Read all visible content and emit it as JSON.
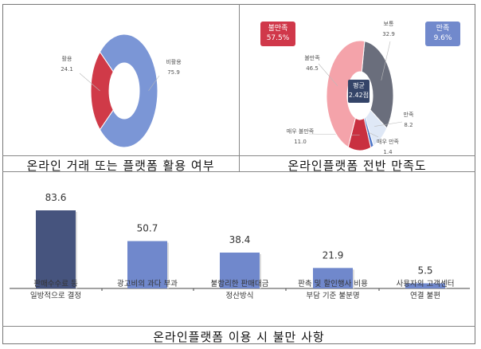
{
  "chart_data": [
    {
      "type": "pie",
      "title": "온라인 거래 또는 플랫폼 활용 여부",
      "slices": [
        {
          "label": "비활용",
          "value": 75.9,
          "color": "#7b96d6"
        },
        {
          "label": "활용",
          "value": 24.1,
          "color": "#d03a48"
        }
      ]
    },
    {
      "type": "pie",
      "title": "온라인플랫폼 전반 만족도",
      "slices": [
        {
          "label": "보통",
          "value": 32.9,
          "color": "#6a6e7c"
        },
        {
          "label": "만족",
          "value": 8.2,
          "color": "#dfe8f6"
        },
        {
          "label": "매우 만족",
          "value": 1.4,
          "color": "#4a74c8"
        },
        {
          "label": "매우 불만족",
          "value": 11.0,
          "color": "#c93040"
        },
        {
          "label": "불만족",
          "value": 46.5,
          "color": "#f4a3aa"
        }
      ],
      "badges": {
        "dissatisfied": {
          "label": "불만족",
          "value": "57.5%",
          "color": "#d0384a"
        },
        "satisfied": {
          "label": "만족",
          "value": "9.6%",
          "color": "#7189cc"
        }
      },
      "center": {
        "label": "평균",
        "value": "2.42점"
      }
    },
    {
      "type": "bar",
      "title": "온라인플랫폼 이용 시 불만 사항",
      "categories": [
        [
          "판매수수료 등",
          "일방적으로 결정"
        ],
        [
          "광고비의 과다 부과",
          ""
        ],
        [
          "불합리한 판매대금",
          "정산방식"
        ],
        [
          "판촉 및 할인행사 비용",
          "부담 기준 불분명"
        ],
        [
          "사용자의 고객센터",
          "연결 불편"
        ]
      ],
      "values": [
        83.6,
        50.7,
        38.4,
        21.9,
        5.5
      ],
      "value_labels": [
        "83.6",
        "50.7",
        "38.4",
        "21.9",
        "5.5"
      ],
      "colors": [
        "#46547e",
        "#7088cc",
        "#7088cc",
        "#7088cc",
        "#7088cc"
      ],
      "ylim": [
        0,
        100
      ]
    }
  ]
}
